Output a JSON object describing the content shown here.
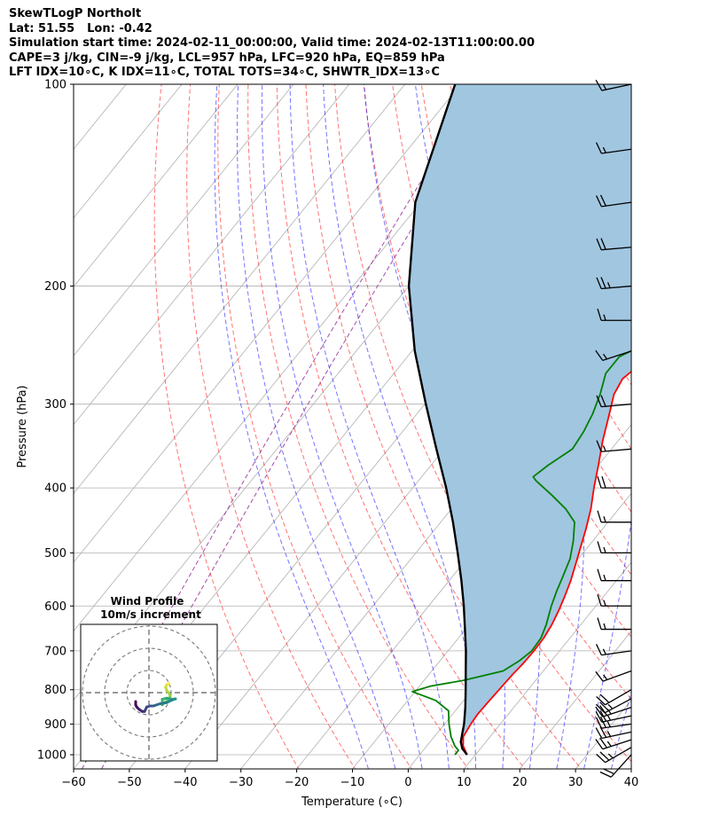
{
  "header": {
    "title": "SkewTLogP Northolt",
    "lat": "Lat: 51.55",
    "lon": "Lon: -0.42",
    "times": "Simulation start time: 2024-02-11_00:00:00, Valid time: 2024-02-13T11:00:00.00",
    "indices1": "CAPE=3 j/kg, CIN=-9 j/kg, LCL=957 hPa, LFC=920 hPa, EQ=859 hPa",
    "indices2": "LFT IDX=10$^\\circ$C, K IDX=11$^\\circ$C, TOTAL TOTS=34$^\\circ$C, SHWTR_IDX=13$^\\circ$C"
  },
  "chart_data": {
    "type": "line",
    "title": "SkewTLogP Northolt",
    "xlabel": "Temperature ($^\\circ$C)",
    "ylabel": "Pressure (hPa)",
    "xlim": [
      -60,
      40
    ],
    "ylim": [
      1050,
      100
    ],
    "yscale": "log",
    "skewed": true,
    "grid": true,
    "x_ticks": [
      -60,
      -50,
      -40,
      -30,
      -20,
      -10,
      0,
      10,
      20,
      30,
      40
    ],
    "x_tick_labels": [
      "−60",
      "−50",
      "−40",
      "−30",
      "−20",
      "−10",
      "0",
      "10",
      "20",
      "30",
      "40"
    ],
    "y_ticks": [
      100,
      200,
      300,
      400,
      500,
      600,
      700,
      800,
      900,
      1000
    ],
    "y_tick_labels": [
      "100",
      "200",
      "300",
      "400",
      "500",
      "600",
      "700",
      "800",
      "900",
      "1000"
    ],
    "reference_lines": {
      "dry_adiabats_theta_K": [
        250,
        260,
        270,
        280,
        290,
        300,
        310,
        320,
        330,
        340,
        350,
        360,
        370,
        380,
        390,
        400,
        410,
        420,
        430,
        440,
        450
      ],
      "moist_adiabats_thetaw_C": [
        -10,
        -5,
        0,
        5,
        10,
        15,
        20,
        25,
        30,
        35
      ],
      "mixing_ratio_lines": "purple dashed",
      "colors": {
        "dry_adiabat": "#ff0000",
        "moist_adiabat": "#0000ff",
        "mixing_ratio": "#800080",
        "isotherm": "#808080"
      }
    },
    "series": [
      {
        "key": "temperature",
        "color": "#ff0000",
        "points": [
          [
            1000,
            8.5
          ],
          [
            970,
            6.5
          ],
          [
            940,
            5.2
          ],
          [
            900,
            4.7
          ],
          [
            870,
            4.5
          ],
          [
            840,
            4.6
          ],
          [
            800,
            4.8
          ],
          [
            760,
            5.0
          ],
          [
            730,
            5.3
          ],
          [
            700,
            5.4
          ],
          [
            670,
            5.3
          ],
          [
            640,
            4.8
          ],
          [
            610,
            4.0
          ],
          [
            580,
            3.0
          ],
          [
            550,
            1.8
          ],
          [
            520,
            0.3
          ],
          [
            490,
            -1.3
          ],
          [
            460,
            -3.0
          ],
          [
            430,
            -5.0
          ],
          [
            400,
            -7.5
          ],
          [
            370,
            -10.0
          ],
          [
            340,
            -12.8
          ],
          [
            310,
            -15.5
          ],
          [
            290,
            -17.5
          ],
          [
            275,
            -18.2
          ],
          [
            262,
            -17.2
          ],
          [
            252,
            -15.5
          ],
          [
            245,
            -13.0
          ],
          [
            235,
            -10.5
          ],
          [
            222,
            -8.0
          ],
          [
            210,
            -5.2
          ],
          [
            195,
            -2.0
          ],
          [
            182,
            0.8
          ],
          [
            170,
            3.5
          ],
          [
            155,
            6.2
          ],
          [
            140,
            8.2
          ],
          [
            128,
            9.0
          ],
          [
            118,
            9.2
          ],
          [
            108,
            9.0
          ],
          [
            100,
            8.5
          ]
        ]
      },
      {
        "key": "dewpoint",
        "color": "#008000",
        "points": [
          [
            1000,
            6.3
          ],
          [
            985,
            6.3
          ],
          [
            970,
            5.0
          ],
          [
            940,
            3.0
          ],
          [
            900,
            0.8
          ],
          [
            860,
            -1.2
          ],
          [
            830,
            -5.0
          ],
          [
            805,
            -10.5
          ],
          [
            790,
            -8.0
          ],
          [
            775,
            -3.0
          ],
          [
            750,
            2.8
          ],
          [
            725,
            4.2
          ],
          [
            700,
            5.0
          ],
          [
            670,
            4.8
          ],
          [
            640,
            3.8
          ],
          [
            600,
            2.0
          ],
          [
            570,
            0.8
          ],
          [
            540,
            -0.3
          ],
          [
            510,
            -1.5
          ],
          [
            480,
            -3.5
          ],
          [
            450,
            -6.0
          ],
          [
            430,
            -9.5
          ],
          [
            410,
            -14.0
          ],
          [
            390,
            -19.0
          ],
          [
            385,
            -20.0
          ],
          [
            370,
            -19.0
          ],
          [
            350,
            -17.0
          ],
          [
            330,
            -17.5
          ],
          [
            310,
            -18.5
          ],
          [
            290,
            -20.0
          ],
          [
            270,
            -22.0
          ],
          [
            255,
            -22.0
          ],
          [
            245,
            -19.5
          ],
          [
            230,
            -17.5
          ],
          [
            215,
            -16.0
          ],
          [
            200,
            -15.5
          ],
          [
            193,
            -17.5
          ],
          [
            187,
            -20.0
          ],
          [
            180,
            -23.5
          ],
          [
            175,
            -23.5
          ],
          [
            170,
            -21.5
          ],
          [
            160,
            -16.5
          ],
          [
            145,
            -10.5
          ],
          [
            130,
            -5.0
          ],
          [
            115,
            0.0
          ],
          [
            100,
            5.5
          ]
        ]
      },
      {
        "key": "parcel",
        "color": "#000000",
        "points": [
          [
            1000,
            8.5
          ],
          [
            980,
            6.8
          ],
          [
            957,
            5.5
          ],
          [
            920,
            4.2
          ],
          [
            900,
            3.5
          ],
          [
            850,
            1.3
          ],
          [
            800,
            -1.2
          ],
          [
            750,
            -3.9
          ],
          [
            700,
            -6.8
          ],
          [
            650,
            -10.1
          ],
          [
            600,
            -13.7
          ],
          [
            550,
            -17.8
          ],
          [
            500,
            -22.5
          ],
          [
            450,
            -27.8
          ],
          [
            400,
            -34.0
          ],
          [
            350,
            -41.4
          ],
          [
            300,
            -49.8
          ],
          [
            250,
            -59.5
          ],
          [
            200,
            -70.0
          ],
          [
            150,
            -81.0
          ],
          [
            100,
            -91.0
          ]
        ]
      }
    ],
    "shading": {
      "between": [
        "temperature",
        "parcel"
      ],
      "color": "#a1c6e0"
    },
    "wind_barbs": {
      "pressures": [
        1000,
        975,
        950,
        925,
        900,
        875,
        850,
        825,
        800,
        750,
        700,
        650,
        600,
        550,
        500,
        450,
        400,
        350,
        300,
        250,
        225,
        200,
        175,
        150,
        125,
        100
      ],
      "speed_kt": [
        20,
        25,
        25,
        25,
        25,
        25,
        25,
        25,
        20,
        15,
        15,
        15,
        15,
        15,
        15,
        15,
        20,
        15,
        20,
        15,
        15,
        25,
        20,
        20,
        15,
        15
      ],
      "direction_deg": [
        222,
        240,
        252,
        258,
        262,
        258,
        252,
        242,
        240,
        250,
        262,
        270,
        270,
        270,
        270,
        270,
        270,
        265,
        265,
        252,
        270,
        265,
        265,
        262,
        262,
        258
      ]
    },
    "hodograph": {
      "title": "Wind Profile",
      "subtitle": "10m/s increment",
      "rings_ms": [
        10,
        20,
        30
      ],
      "track_uv": [
        [
          9.0,
          4.0
        ],
        [
          8.0,
          3.5
        ],
        [
          7.5,
          2.5
        ],
        [
          8.0,
          1.0
        ],
        [
          9.5,
          -1.0
        ],
        [
          9.5,
          -2.0
        ],
        [
          8.0,
          -4.0
        ],
        [
          7.0,
          -4.5
        ],
        [
          6.0,
          -5.5
        ],
        [
          6.0,
          -3.0
        ],
        [
          8.0,
          -2.5
        ],
        [
          10.5,
          -3.0
        ],
        [
          12.0,
          -2.8
        ],
        [
          10.0,
          -3.5
        ],
        [
          8.0,
          -4.5
        ],
        [
          5.0,
          -5.0
        ],
        [
          3.5,
          -5.5
        ],
        [
          2.0,
          -6.0
        ],
        [
          0.5,
          -6.0
        ],
        [
          -1.0,
          -6.5
        ],
        [
          -2.0,
          -8.5
        ],
        [
          -3.0,
          -8.5
        ],
        [
          -4.5,
          -7.5
        ],
        [
          -5.5,
          -6.5
        ],
        [
          -6.0,
          -5.5
        ],
        [
          -6.0,
          -4.0
        ]
      ],
      "colormap": "viridis"
    }
  }
}
